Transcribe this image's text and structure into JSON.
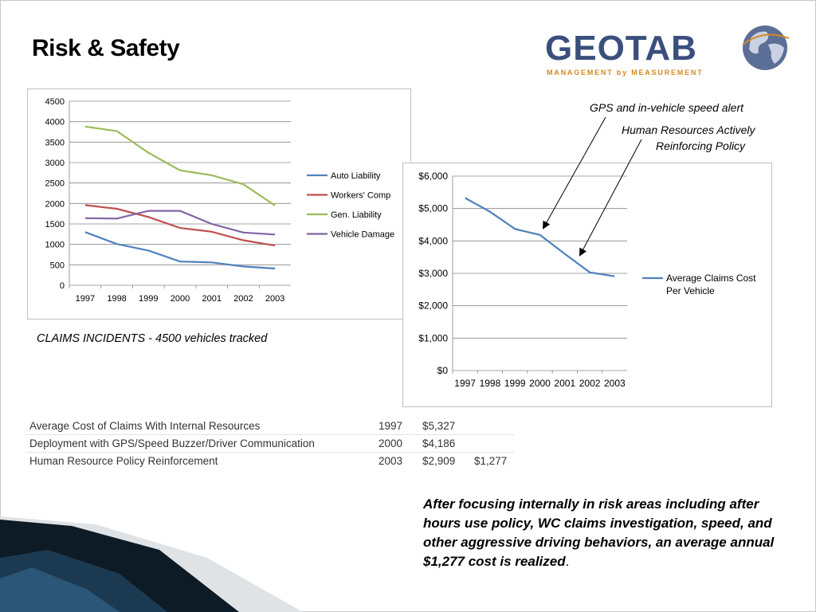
{
  "title": "Risk & Safety",
  "logo": {
    "word": "GEOTAB",
    "tagline": "MANAGEMENT by MEASUREMENT"
  },
  "colors": {
    "auto": "#4f81bd",
    "workers": "#c0504d",
    "general": "#9bbb59",
    "vehicle": "#8064a2",
    "claims": "#4f81bd",
    "logo_blue": "#3a4f7c",
    "logo_orange": "#d48a1e"
  },
  "caption": "CLAIMS INCIDENTS - 4500 vehicles tracked",
  "annotations": {
    "gps": "GPS and in-vehicle speed alert",
    "hr_line1": "Human Resources Actively",
    "hr_line2": "Reinforcing Policy"
  },
  "table": {
    "rows": [
      {
        "desc": "Average Cost of Claims With Internal Resources",
        "year": "1997",
        "cost": "$5,327",
        "saving": ""
      },
      {
        "desc": "Deployment with GPS/Speed Buzzer/Driver Communication",
        "year": "2000",
        "cost": "$4,186",
        "saving": ""
      },
      {
        "desc": "Human Resource Policy Reinforcement",
        "year": "2003",
        "cost": "$2,909",
        "saving": "$1,277"
      }
    ]
  },
  "conclusion": {
    "text": "After focusing internally in risk areas including after hours use policy, WC claims investigation, speed, and other aggressive driving behaviors, an average annual $1,277 cost is realized",
    "end": "."
  },
  "chart_data": [
    {
      "type": "line",
      "categories": [
        "1997",
        "1998",
        "1999",
        "2000",
        "2001",
        "2002",
        "2003"
      ],
      "ylim": [
        0,
        4500
      ],
      "yticks": [
        "0",
        "500",
        "1000",
        "1500",
        "2000",
        "2500",
        "3000",
        "3500",
        "4000",
        "4500"
      ],
      "grid": true,
      "legend": "right",
      "series": [
        {
          "name": "Auto Liability",
          "values": [
            1300,
            1010,
            850,
            580,
            560,
            460,
            410
          ]
        },
        {
          "name": "Workers' Comp",
          "values": [
            1960,
            1870,
            1670,
            1400,
            1310,
            1100,
            970
          ]
        },
        {
          "name": "Gen. Liability",
          "values": [
            3880,
            3770,
            3240,
            2810,
            2690,
            2470,
            1950
          ]
        },
        {
          "name": "Vehicle Damage",
          "values": [
            1640,
            1630,
            1820,
            1820,
            1500,
            1290,
            1240
          ]
        }
      ]
    },
    {
      "type": "line",
      "categories": [
        "1997",
        "1998",
        "1999",
        "2000",
        "2001",
        "2002",
        "2003"
      ],
      "ylim": [
        0,
        6000
      ],
      "yticks": [
        "$0",
        "$1,000",
        "$2,000",
        "$3,000",
        "$4,000",
        "$5,000",
        "$6,000"
      ],
      "grid": true,
      "legend": "right",
      "series": [
        {
          "name": "Average Claims Cost Per Vehicle",
          "values": [
            5327,
            4900,
            4370,
            4186,
            3600,
            3030,
            2909
          ]
        }
      ]
    }
  ]
}
